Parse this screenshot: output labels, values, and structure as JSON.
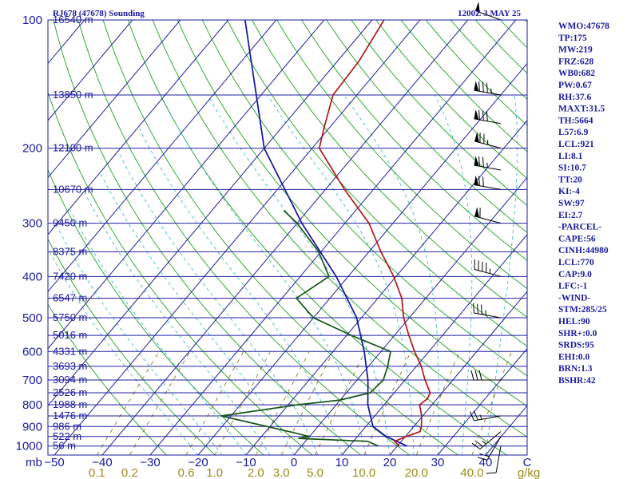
{
  "chart_data": {
    "type": "skew-t",
    "title_left": "RJ678 (47678) Sounding",
    "title_right": "1200Z  3 MAY 25",
    "x_axis_prefix": "mb",
    "x_axis_unit": "C",
    "mixing_ratio_unit": "g/kg",
    "pressure_labels": [
      100,
      200,
      300,
      400,
      500,
      600,
      700,
      800,
      900,
      1000
    ],
    "temperature_ticks": [
      -50,
      -40,
      -30,
      -20,
      -10,
      0,
      10,
      20,
      30,
      40
    ],
    "mixing_ratio_labels": [
      "0.1",
      "0.2",
      "0.6",
      "1.0",
      "2.0",
      "3.0",
      "5.0",
      "10.0",
      "20.0",
      "40.0"
    ],
    "mixing_ratio_values": [
      0.1,
      0.2,
      0.6,
      1.0,
      2.0,
      3.0,
      5.0,
      10.0,
      20.0,
      40.0
    ],
    "height_levels": [
      {
        "p": 100,
        "label": "16540 m"
      },
      {
        "p": 150,
        "label": "13850 m"
      },
      {
        "p": 200,
        "label": "12100 m"
      },
      {
        "p": 250,
        "label": "10670 m"
      },
      {
        "p": 300,
        "label": "9450 m"
      },
      {
        "p": 350,
        "label": "8375 m"
      },
      {
        "p": 400,
        "label": "7420 m"
      },
      {
        "p": 450,
        "label": "6547 m"
      },
      {
        "p": 500,
        "label": "5750 m"
      },
      {
        "p": 550,
        "label": "5016 m"
      },
      {
        "p": 600,
        "label": "4331 m"
      },
      {
        "p": 650,
        "label": "3693 m"
      },
      {
        "p": 700,
        "label": "3094 m"
      },
      {
        "p": 750,
        "label": "2526 m"
      },
      {
        "p": 800,
        "label": "1988 m"
      },
      {
        "p": 850,
        "label": "1476 m"
      },
      {
        "p": 900,
        "label": "986 m"
      },
      {
        "p": 950,
        "label": "522 m"
      },
      {
        "p": 1000,
        "label": "56 m"
      }
    ],
    "temperature_profile": [
      [
        1000,
        20.4
      ],
      [
        975,
        18.6
      ],
      [
        950,
        20.2
      ],
      [
        925,
        22.2
      ],
      [
        900,
        21.6
      ],
      [
        850,
        19.8
      ],
      [
        800,
        17.4
      ],
      [
        775,
        18.0
      ],
      [
        750,
        17.5
      ],
      [
        700,
        14.2
      ],
      [
        650,
        11.0
      ],
      [
        600,
        7.0
      ],
      [
        550,
        3.0
      ],
      [
        500,
        -1.2
      ],
      [
        450,
        -5.0
      ],
      [
        400,
        -10.5
      ],
      [
        350,
        -17.5
      ],
      [
        300,
        -25.0
      ],
      [
        250,
        -36.0
      ],
      [
        200,
        -48.5
      ],
      [
        180,
        -51.0
      ],
      [
        150,
        -55.0
      ],
      [
        125,
        -55.5
      ],
      [
        100,
        -57.5
      ]
    ],
    "dewpoint_profile": [
      [
        1000,
        16.0
      ],
      [
        975,
        13.0
      ],
      [
        960,
        -2.0
      ],
      [
        950,
        0.0
      ],
      [
        930,
        -4.0
      ],
      [
        850,
        -22.0
      ],
      [
        800,
        -8.0
      ],
      [
        780,
        0.0
      ],
      [
        750,
        5.0
      ],
      [
        700,
        5.5
      ],
      [
        650,
        4.0
      ],
      [
        600,
        2.0
      ],
      [
        550,
        -9.0
      ],
      [
        500,
        -20.0
      ],
      [
        450,
        -27.0
      ],
      [
        400,
        -24.0
      ],
      [
        350,
        -30.5
      ],
      [
        300,
        -40.0
      ],
      [
        280,
        -45.0
      ]
    ],
    "parcel_profile": [
      [
        1000,
        22.0
      ],
      [
        950,
        16.0
      ],
      [
        900,
        11.5
      ],
      [
        800,
        6.6
      ],
      [
        700,
        2.3
      ],
      [
        600,
        -3.5
      ],
      [
        500,
        -11.0
      ],
      [
        400,
        -22.5
      ],
      [
        300,
        -39.0
      ],
      [
        200,
        -60.0
      ],
      [
        100,
        -86.5
      ]
    ],
    "wind_barbs": [
      {
        "p": 1000,
        "dir": 190,
        "spd": 10
      },
      {
        "p": 950,
        "dir": 210,
        "spd": 20
      },
      {
        "p": 925,
        "dir": 230,
        "spd": 25
      },
      {
        "p": 850,
        "dir": 260,
        "spd": 25
      },
      {
        "p": 700,
        "dir": 270,
        "spd": 30
      },
      {
        "p": 500,
        "dir": 280,
        "spd": 35
      },
      {
        "p": 400,
        "dir": 285,
        "spd": 45
      },
      {
        "p": 300,
        "dir": 285,
        "spd": 60
      },
      {
        "p": 250,
        "dir": 280,
        "spd": 70
      },
      {
        "p": 225,
        "dir": 280,
        "spd": 75
      },
      {
        "p": 200,
        "dir": 285,
        "spd": 75
      },
      {
        "p": 175,
        "dir": 280,
        "spd": 80
      },
      {
        "p": 150,
        "dir": 280,
        "spd": 85
      },
      {
        "p": 100,
        "dir": 290,
        "spd": 50
      }
    ],
    "colors": {
      "isobar": "#2020a0",
      "isotherm": "#2020a0",
      "dry_adiabat": "#1fa01f",
      "moist_adiabat": "#40b8c8",
      "mixing_ratio": "#8a7a10",
      "temperature": "#b01818",
      "dewpoint": "#155515",
      "parcel": "#1010a0",
      "barb": "#000000",
      "text": "#1a1aa0",
      "axis_label_mix": "#9a8a18"
    }
  },
  "indices": [
    "WMO:47678",
    "TP:175",
    "MW:219",
    "FRZ:628",
    "WB0:682",
    "PW:0.67",
    "RH:37.6",
    "MAXT:31.5",
    "TH:5664",
    "L57:6.9",
    "LCL:921",
    "LI:8.1",
    "SI:10.7",
    "TT:20",
    "KI:-4",
    "SW:97",
    "EI:2.7",
    "-PARCEL-",
    "CAPE:56",
    "CINH:44980",
    "LCL:770",
    "CAP:9.0",
    "LFC:-1",
    "-WIND-",
    "STM:285/25",
    "HEL:90",
    "SHR+:0.0",
    "SRDS:95",
    "EHI:0.0",
    "BRN:1.3",
    "BSHR:42"
  ]
}
